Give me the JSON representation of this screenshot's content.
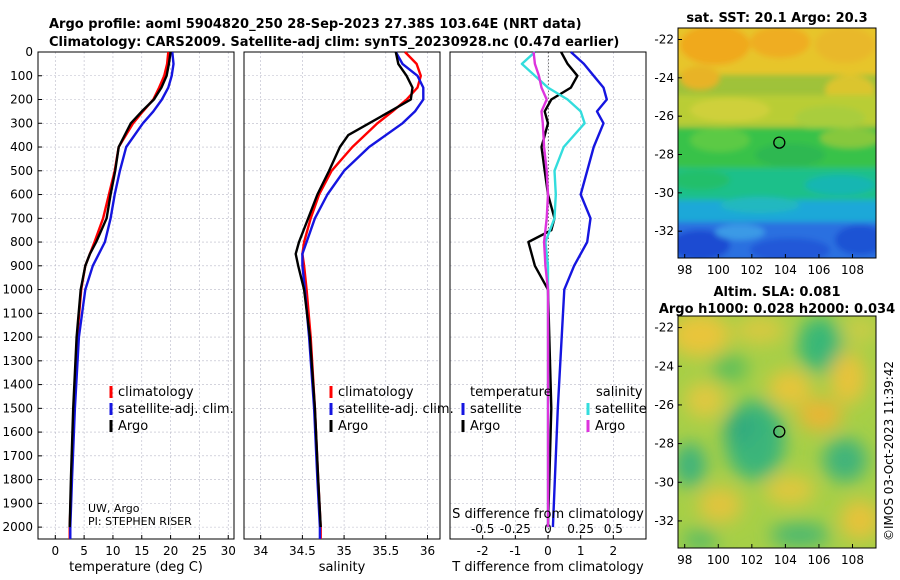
{
  "header": {
    "title_line1": "Argo profile: aoml 5904820_250 28-Sep-2023 27.38S 103.64E (NRT data)",
    "title_line2": "Climatology: CARS2009. Satellite-adj clim: synTS_20230928.nc (0.47d earlier)",
    "map1_title": "sat. SST: 20.1 Argo: 20.3",
    "map2_title1": "Altim. SLA: 0.081",
    "map2_title2": "Argo h1000: 0.028 h2000: 0.034",
    "timestamp": "©IMOS 03-Oct-2023 11:39:42"
  },
  "legend": {
    "clim": "climatology",
    "sat": "satellite-adj. clim.",
    "argo": "Argo",
    "temperature": "temperature",
    "salinity": "salinity",
    "satellite": "satellite",
    "argo2": "Argo"
  },
  "annotation": {
    "institution": "UW, Argo",
    "pi": "PI: STEPHEN RISER"
  },
  "colors": {
    "climatology": "#ff0000",
    "satellite": "#1515e0",
    "argo": "#000000",
    "sal_satellite": "#33dddd",
    "sal_argo": "#dd33dd"
  },
  "chart_data": [
    {
      "type": "line",
      "panel": "temperature",
      "xlabel": "temperature (deg C)",
      "xlim": [
        -3,
        31
      ],
      "xticks": [
        0,
        5,
        10,
        15,
        20,
        25,
        30
      ],
      "ylim": [
        2050,
        0
      ],
      "yticks": [
        0,
        100,
        200,
        300,
        400,
        500,
        600,
        700,
        800,
        900,
        1000,
        1100,
        1200,
        1300,
        1400,
        1500,
        1600,
        1700,
        1800,
        1900,
        2000
      ],
      "series": [
        {
          "name": "climatology",
          "depth": [
            0,
            50,
            100,
            150,
            200,
            250,
            300,
            400,
            500,
            600,
            700,
            800,
            900,
            1000,
            1200,
            1500,
            1800,
            2000,
            2050
          ],
          "values": [
            19.6,
            19.4,
            18.9,
            18.0,
            17.0,
            15.2,
            13.5,
            11.0,
            10.3,
            9.3,
            8.3,
            6.8,
            5.2,
            4.5,
            3.8,
            3.2,
            2.8,
            2.5,
            2.5
          ]
        },
        {
          "name": "satellite-adj. clim.",
          "depth": [
            0,
            50,
            100,
            150,
            200,
            250,
            300,
            400,
            500,
            600,
            700,
            800,
            900,
            1000,
            1200,
            1500,
            1800,
            2000,
            2050
          ],
          "values": [
            20.3,
            20.5,
            20.2,
            19.6,
            18.5,
            17.0,
            15.2,
            12.3,
            11.2,
            10.3,
            9.6,
            8.6,
            6.5,
            5.2,
            4.1,
            3.4,
            2.9,
            2.6,
            2.6
          ]
        },
        {
          "name": "Argo",
          "depth": [
            0,
            50,
            100,
            150,
            200,
            250,
            300,
            400,
            500,
            600,
            700,
            800,
            850,
            900,
            1000,
            1200,
            1500,
            1800,
            2000
          ],
          "values": [
            20.0,
            19.7,
            19.3,
            18.4,
            17.1,
            15.0,
            13.1,
            11.0,
            10.4,
            9.6,
            8.9,
            7.1,
            6.0,
            5.2,
            4.4,
            3.7,
            3.1,
            2.7,
            2.5
          ]
        }
      ]
    },
    {
      "type": "line",
      "panel": "salinity",
      "xlabel": "salinity",
      "xlim": [
        33.8,
        36.15
      ],
      "xticks": [
        34,
        34.5,
        35,
        35.5,
        36
      ],
      "xtick_labels": [
        "34",
        "34.5",
        "35",
        "35.5",
        "36"
      ],
      "ylim": [
        2050,
        0
      ],
      "series": [
        {
          "name": "climatology",
          "depth": [
            0,
            50,
            100,
            150,
            200,
            250,
            300,
            400,
            500,
            600,
            700,
            800,
            850,
            900,
            1000,
            1200,
            1500,
            1800,
            2000,
            2050
          ],
          "values": [
            35.73,
            35.87,
            35.92,
            35.88,
            35.75,
            35.58,
            35.4,
            35.1,
            34.85,
            34.7,
            34.6,
            34.52,
            34.5,
            34.52,
            34.55,
            34.6,
            34.65,
            34.69,
            34.72,
            34.72
          ]
        },
        {
          "name": "satellite-adj. clim.",
          "depth": [
            0,
            50,
            100,
            150,
            200,
            250,
            300,
            400,
            500,
            600,
            700,
            800,
            850,
            900,
            1000,
            1200,
            1500,
            1800,
            2000,
            2050
          ],
          "values": [
            35.62,
            35.7,
            35.88,
            35.95,
            35.95,
            35.85,
            35.7,
            35.3,
            35.0,
            34.8,
            34.65,
            34.55,
            34.5,
            34.5,
            34.53,
            34.58,
            34.64,
            34.68,
            34.71,
            34.71
          ]
        },
        {
          "name": "Argo",
          "depth": [
            0,
            50,
            100,
            150,
            200,
            250,
            300,
            350,
            400,
            500,
            600,
            700,
            800,
            850,
            900,
            1000,
            1200,
            1500,
            1800,
            2000
          ],
          "values": [
            35.62,
            35.65,
            35.75,
            35.82,
            35.8,
            35.55,
            35.3,
            35.05,
            34.95,
            34.82,
            34.68,
            34.57,
            34.46,
            34.42,
            34.45,
            34.52,
            34.59,
            34.65,
            34.69,
            34.72
          ]
        }
      ]
    },
    {
      "type": "line",
      "panel": "difference",
      "xlabel": "T difference from climatology",
      "xlabel_top": "S difference from climatology",
      "xlim": [
        -3,
        3
      ],
      "xticks": [
        -2,
        -1,
        0,
        1,
        2
      ],
      "s_tick_labels": [
        "-0.5",
        "-0.25",
        "0",
        "0.25",
        "0.5"
      ],
      "ylim": [
        2050,
        0
      ],
      "series": [
        {
          "name": "temperature satellite",
          "depth": [
            0,
            50,
            100,
            150,
            200,
            250,
            300,
            400,
            500,
            600,
            700,
            800,
            900,
            1000,
            1500,
            2000
          ],
          "values": [
            0.7,
            1.1,
            1.4,
            1.7,
            1.8,
            1.5,
            1.7,
            1.4,
            1.2,
            1.0,
            1.3,
            1.2,
            0.8,
            0.5,
            0.3,
            0.15
          ]
        },
        {
          "name": "temperature Argo",
          "depth": [
            0,
            50,
            100,
            150,
            200,
            250,
            300,
            400,
            500,
            600,
            700,
            750,
            800,
            900,
            1000,
            1500,
            2000
          ],
          "values": [
            0.4,
            0.6,
            0.9,
            0.7,
            0.1,
            -0.1,
            0.0,
            -0.2,
            -0.1,
            0.0,
            0.2,
            0.1,
            -0.6,
            -0.4,
            0.0,
            0.1,
            0.0
          ]
        },
        {
          "name": "salinity satellite",
          "depth": [
            0,
            50,
            100,
            150,
            200,
            250,
            300,
            400,
            500,
            600,
            700,
            800,
            900,
            1000,
            1500,
            2000
          ],
          "values": [
            -0.1,
            -0.2,
            -0.1,
            0.0,
            0.15,
            0.25,
            0.28,
            0.12,
            0.05,
            0.06,
            0.05,
            -0.02,
            0.0,
            0.0,
            0.0,
            0.0
          ]
        },
        {
          "name": "salinity Argo",
          "depth": [
            0,
            50,
            100,
            150,
            200,
            250,
            300,
            400,
            500,
            600,
            700,
            800,
            900,
            1000,
            1500,
            2000
          ],
          "values": [
            -0.11,
            -0.1,
            -0.07,
            -0.05,
            -0.01,
            -0.05,
            -0.04,
            -0.03,
            -0.01,
            0.0,
            -0.01,
            -0.03,
            -0.02,
            0.0,
            0.0,
            0.0
          ]
        }
      ]
    },
    {
      "type": "heatmap",
      "panel": "sat. SST map",
      "xticks": [
        98,
        100,
        102,
        104,
        106,
        108
      ],
      "yticks": [
        -22,
        -24,
        -26,
        -28,
        -30,
        -32
      ],
      "xlim": [
        97.6,
        109.4
      ],
      "ylim": [
        -33.4,
        -21.4
      ],
      "marker": {
        "lon": 103.64,
        "lat": -27.38
      }
    },
    {
      "type": "heatmap",
      "panel": "Altim. SLA map",
      "xticks": [
        98,
        100,
        102,
        104,
        106,
        108
      ],
      "yticks": [
        -22,
        -24,
        -26,
        -28,
        -30,
        -32
      ],
      "xlim": [
        97.6,
        109.4
      ],
      "ylim": [
        -33.4,
        -21.4
      ],
      "marker": {
        "lon": 103.64,
        "lat": -27.38
      }
    }
  ]
}
